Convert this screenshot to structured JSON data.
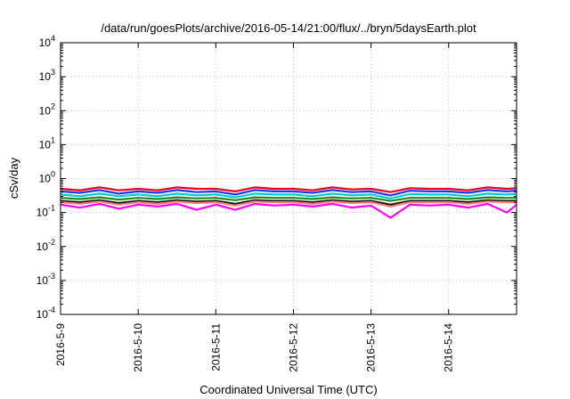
{
  "chart_data": {
    "type": "line",
    "title": "/data/run/goesPlots/archive/2016-05-14/21:00/flux/../bryn/5daysEarth.plot",
    "xlabel": "Coordinated Universal Time (UTC)",
    "ylabel": "cSv/day",
    "yscale": "log",
    "ylim": [
      0.0001,
      10000
    ],
    "xlim": [
      "2016-05-09 00:00",
      "2016-05-14 21:00"
    ],
    "grid": true,
    "x_ticks": [
      "2016-5-9",
      "2016-5-10",
      "2016-5-11",
      "2016-5-12",
      "2016-5-13",
      "2016-5-14"
    ],
    "y_ticks": [
      {
        "value": 0.0001,
        "base": "10",
        "exp": "-4"
      },
      {
        "value": 0.001,
        "base": "10",
        "exp": "-3"
      },
      {
        "value": 0.01,
        "base": "10",
        "exp": "-2"
      },
      {
        "value": 0.1,
        "base": "10",
        "exp": "-1"
      },
      {
        "value": 1,
        "base": "10",
        "exp": "0"
      },
      {
        "value": 10,
        "base": "10",
        "exp": "1"
      },
      {
        "value": 100,
        "base": "10",
        "exp": "2"
      },
      {
        "value": 1000,
        "base": "10",
        "exp": "3"
      },
      {
        "value": 10000,
        "base": "10",
        "exp": "4"
      }
    ],
    "x": [
      "2016-05-09 00:00",
      "2016-05-09 06:00",
      "2016-05-09 12:00",
      "2016-05-09 18:00",
      "2016-05-10 00:00",
      "2016-05-10 06:00",
      "2016-05-10 12:00",
      "2016-05-10 18:00",
      "2016-05-11 00:00",
      "2016-05-11 06:00",
      "2016-05-11 12:00",
      "2016-05-11 18:00",
      "2016-05-12 00:00",
      "2016-05-12 06:00",
      "2016-05-12 12:00",
      "2016-05-12 18:00",
      "2016-05-13 00:00",
      "2016-05-13 06:00",
      "2016-05-13 12:00",
      "2016-05-13 18:00",
      "2016-05-14 00:00",
      "2016-05-14 06:00",
      "2016-05-14 12:00",
      "2016-05-14 18:00",
      "2016-05-14 21:00"
    ],
    "series": [
      {
        "color": "#e8001c",
        "values": [
          0.5,
          0.45,
          0.55,
          0.45,
          0.5,
          0.45,
          0.55,
          0.5,
          0.5,
          0.42,
          0.55,
          0.5,
          0.5,
          0.45,
          0.55,
          0.48,
          0.5,
          0.4,
          0.52,
          0.5,
          0.5,
          0.45,
          0.55,
          0.5,
          0.52
        ]
      },
      {
        "color": "#2233ee",
        "values": [
          0.42,
          0.38,
          0.46,
          0.36,
          0.42,
          0.38,
          0.46,
          0.4,
          0.42,
          0.34,
          0.46,
          0.42,
          0.42,
          0.38,
          0.46,
          0.4,
          0.42,
          0.32,
          0.44,
          0.42,
          0.42,
          0.38,
          0.46,
          0.42,
          0.44
        ]
      },
      {
        "color": "#00cccc",
        "values": [
          0.34,
          0.3,
          0.36,
          0.3,
          0.34,
          0.3,
          0.36,
          0.32,
          0.34,
          0.28,
          0.36,
          0.34,
          0.34,
          0.3,
          0.36,
          0.32,
          0.34,
          0.26,
          0.35,
          0.34,
          0.34,
          0.3,
          0.36,
          0.34,
          0.35
        ]
      },
      {
        "color": "#1a8c1a",
        "values": [
          0.27,
          0.25,
          0.28,
          0.24,
          0.27,
          0.25,
          0.28,
          0.26,
          0.27,
          0.23,
          0.28,
          0.27,
          0.27,
          0.25,
          0.28,
          0.26,
          0.27,
          0.22,
          0.27,
          0.27,
          0.27,
          0.25,
          0.28,
          0.27,
          0.27
        ]
      },
      {
        "color": "#111111",
        "values": [
          0.22,
          0.2,
          0.23,
          0.19,
          0.22,
          0.2,
          0.23,
          0.21,
          0.22,
          0.18,
          0.23,
          0.22,
          0.22,
          0.2,
          0.23,
          0.21,
          0.22,
          0.17,
          0.22,
          0.22,
          0.22,
          0.2,
          0.23,
          0.22,
          0.22
        ]
      },
      {
        "color": "#ff7f7f",
        "values": [
          0.2,
          0.18,
          0.21,
          0.17,
          0.2,
          0.18,
          0.21,
          0.19,
          0.2,
          0.16,
          0.21,
          0.2,
          0.2,
          0.18,
          0.21,
          0.19,
          0.2,
          0.15,
          0.2,
          0.2,
          0.2,
          0.18,
          0.21,
          0.2,
          0.2
        ]
      },
      {
        "color": "#ff00ff",
        "values": [
          0.17,
          0.14,
          0.18,
          0.13,
          0.17,
          0.15,
          0.18,
          0.12,
          0.17,
          0.12,
          0.18,
          0.16,
          0.17,
          0.15,
          0.18,
          0.14,
          0.16,
          0.07,
          0.17,
          0.16,
          0.17,
          0.14,
          0.18,
          0.1,
          0.17
        ]
      }
    ]
  }
}
